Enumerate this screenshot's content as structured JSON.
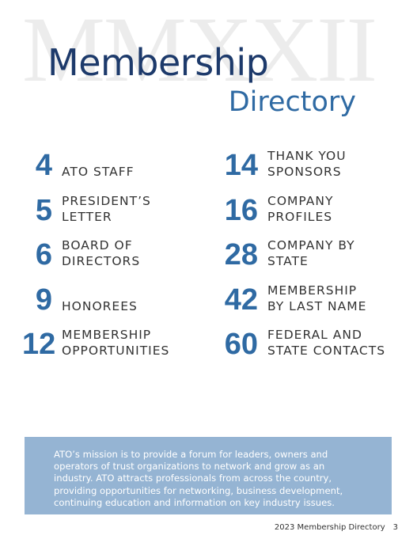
{
  "watermark": "MMXXII",
  "header": {
    "title": "Membership",
    "subtitle": "Directory"
  },
  "toc": {
    "left": [
      {
        "page": 4,
        "label": [
          "ATO STAFF"
        ]
      },
      {
        "page": 5,
        "label": [
          "PRESIDENT’S",
          "LETTER"
        ]
      },
      {
        "page": 6,
        "label": [
          "BOARD OF",
          "DIRECTORS"
        ]
      },
      {
        "page": 9,
        "label": [
          "HONOREES"
        ]
      },
      {
        "page": 12,
        "label": [
          "MEMBERSHIP",
          "OPPORTUNITIES"
        ]
      }
    ],
    "right": [
      {
        "page": 14,
        "label": [
          "THANK YOU",
          "SPONSORS"
        ]
      },
      {
        "page": 16,
        "label": [
          "COMPANY",
          "PROFILES"
        ]
      },
      {
        "page": 28,
        "label": [
          "COMPANY BY",
          "STATE"
        ]
      },
      {
        "page": 42,
        "label": [
          "MEMBERSHIP",
          "BY LAST NAME"
        ]
      },
      {
        "page": 60,
        "label": [
          "FEDERAL AND",
          "STATE CONTACTS"
        ]
      }
    ]
  },
  "mission": [
    "ATO’s mission is to provide a forum for leaders, owners and",
    "operators of trust organizations to network and grow as an",
    "industry. ATO attracts professionals from across the country,",
    "providing opportunities for networking, business development,",
    "continuing education and information on key industry issues."
  ],
  "footer": {
    "title": "2023 Membership Directory",
    "page": 3
  }
}
